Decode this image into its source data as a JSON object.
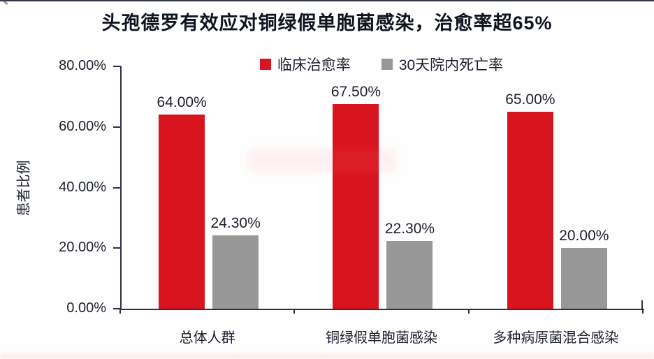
{
  "title": "头孢德罗有效应对铜绿假单胞菌感染，治愈率超65%",
  "colors": {
    "bar_cure": "#D8141F",
    "bar_mortality": "#989898",
    "text": "#1C202E",
    "axis": "#2E3240"
  },
  "legend": [
    {
      "label": "临床治愈率",
      "color": "#D8141F"
    },
    {
      "label": "30天院内死亡率",
      "color": "#989898"
    }
  ],
  "y_axis": {
    "title": "患者比例",
    "ticks": [
      {
        "value": 80,
        "label": "80.00%"
      },
      {
        "value": 60,
        "label": "60.00%"
      },
      {
        "value": 40,
        "label": "40.00%"
      },
      {
        "value": 20,
        "label": "20.00%"
      },
      {
        "value": 0,
        "label": "0.00%"
      }
    ]
  },
  "chart_data": {
    "type": "bar",
    "title": "头孢德罗有效应对铜绿假单胞菌感染，治愈率超65%",
    "categories": [
      "总体人群",
      "铜绿假单胞菌感染",
      "多种病原菌混合感染"
    ],
    "series": [
      {
        "name": "临床治愈率",
        "color": "#D8141F",
        "values": [
          64.0,
          67.5,
          65.0
        ],
        "labels": [
          "64.00%",
          "67.50%",
          "65.00%"
        ]
      },
      {
        "name": "30天院内死亡率",
        "color": "#989898",
        "values": [
          24.3,
          22.3,
          20.0
        ],
        "labels": [
          "24.30%",
          "22.30%",
          "20.00%"
        ]
      }
    ],
    "xlabel": "",
    "ylabel": "患者比例",
    "ylim": [
      0,
      80
    ],
    "yticks": [
      0,
      20,
      40,
      60,
      80
    ],
    "grid": false,
    "legend_position": "top"
  }
}
